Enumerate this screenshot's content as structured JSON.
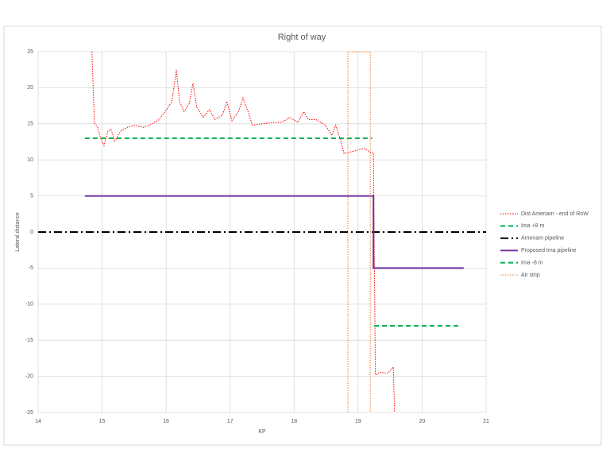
{
  "chart_data": {
    "type": "line",
    "title": "Right of way",
    "x_label": "KP",
    "y_label": "Lateral distance",
    "xlim": [
      14,
      21
    ],
    "xticks": [
      14,
      15,
      16,
      17,
      18,
      19,
      20,
      21
    ],
    "ylim": [
      -25,
      25
    ],
    "yticks": [
      -25,
      -20,
      -15,
      -10,
      -5,
      0,
      5,
      10,
      15,
      20,
      25
    ],
    "grid": true,
    "legend": "right",
    "series": [
      {
        "name": "Dist Amenam - end of RoW",
        "color": "#ff0000",
        "style": "dotted",
        "width": 1,
        "x": [
          14.84,
          14.88,
          14.93,
          14.98,
          15.03,
          15.09,
          15.14,
          15.2,
          15.29,
          15.39,
          15.51,
          15.64,
          15.76,
          15.89,
          16.01,
          16.09,
          16.16,
          16.21,
          16.28,
          16.36,
          16.42,
          16.48,
          16.58,
          16.68,
          16.76,
          16.88,
          16.95,
          17.03,
          17.13,
          17.2,
          17.28,
          17.35,
          17.5,
          17.69,
          17.81,
          17.93,
          18.06,
          18.15,
          18.22,
          18.34,
          18.49,
          18.59,
          18.65,
          18.72,
          18.78,
          18.93,
          19.09,
          19.2,
          19.24,
          19.25,
          19.27,
          19.36,
          19.46,
          19.55,
          19.57
        ],
        "values": [
          25,
          15.1,
          14.5,
          12.9,
          12.0,
          14.0,
          14.2,
          12.6,
          14.0,
          14.5,
          14.8,
          14.5,
          14.9,
          15.6,
          17.0,
          18.1,
          22.5,
          18.1,
          16.7,
          17.8,
          20.6,
          17.3,
          15.9,
          17.0,
          15.6,
          16.2,
          18.1,
          15.4,
          16.7,
          18.6,
          16.7,
          14.8,
          15.0,
          15.2,
          15.2,
          15.9,
          15.2,
          16.7,
          15.6,
          15.6,
          14.8,
          13.4,
          14.8,
          12.9,
          10.9,
          11.2,
          11.6,
          11.0,
          11.0,
          0.2,
          -19.8,
          -19.4,
          -19.6,
          -18.7,
          -25
        ]
      },
      {
        "name": "Ima +8 m",
        "color": "#00b050",
        "style": "dashed",
        "width": 2,
        "x": [
          14.73,
          19.22
        ],
        "values": [
          13,
          13
        ]
      },
      {
        "name": "Amenam pipeline",
        "color": "#000000",
        "style": "dashdot",
        "width": 2,
        "x": [
          14,
          21
        ],
        "values": [
          0,
          0
        ]
      },
      {
        "name": "Proposed Ima pipeline",
        "color": "#7030a0",
        "style": "solid",
        "width": 2,
        "x": [
          14.73,
          19.24,
          19.24,
          20.65
        ],
        "values": [
          5,
          5,
          -5,
          -5
        ]
      },
      {
        "name": "Ima -8 m",
        "color": "#00b050",
        "style": "dashed",
        "width": 2,
        "x": [
          19.25,
          20.57
        ],
        "values": [
          -13,
          -13
        ]
      },
      {
        "name": "Air strip",
        "color": "#ed7d31",
        "style": "dotted",
        "width": 1,
        "x": [
          18.84,
          18.84,
          19.19,
          19.19
        ],
        "values": [
          -25,
          25,
          25,
          -25
        ]
      }
    ]
  }
}
